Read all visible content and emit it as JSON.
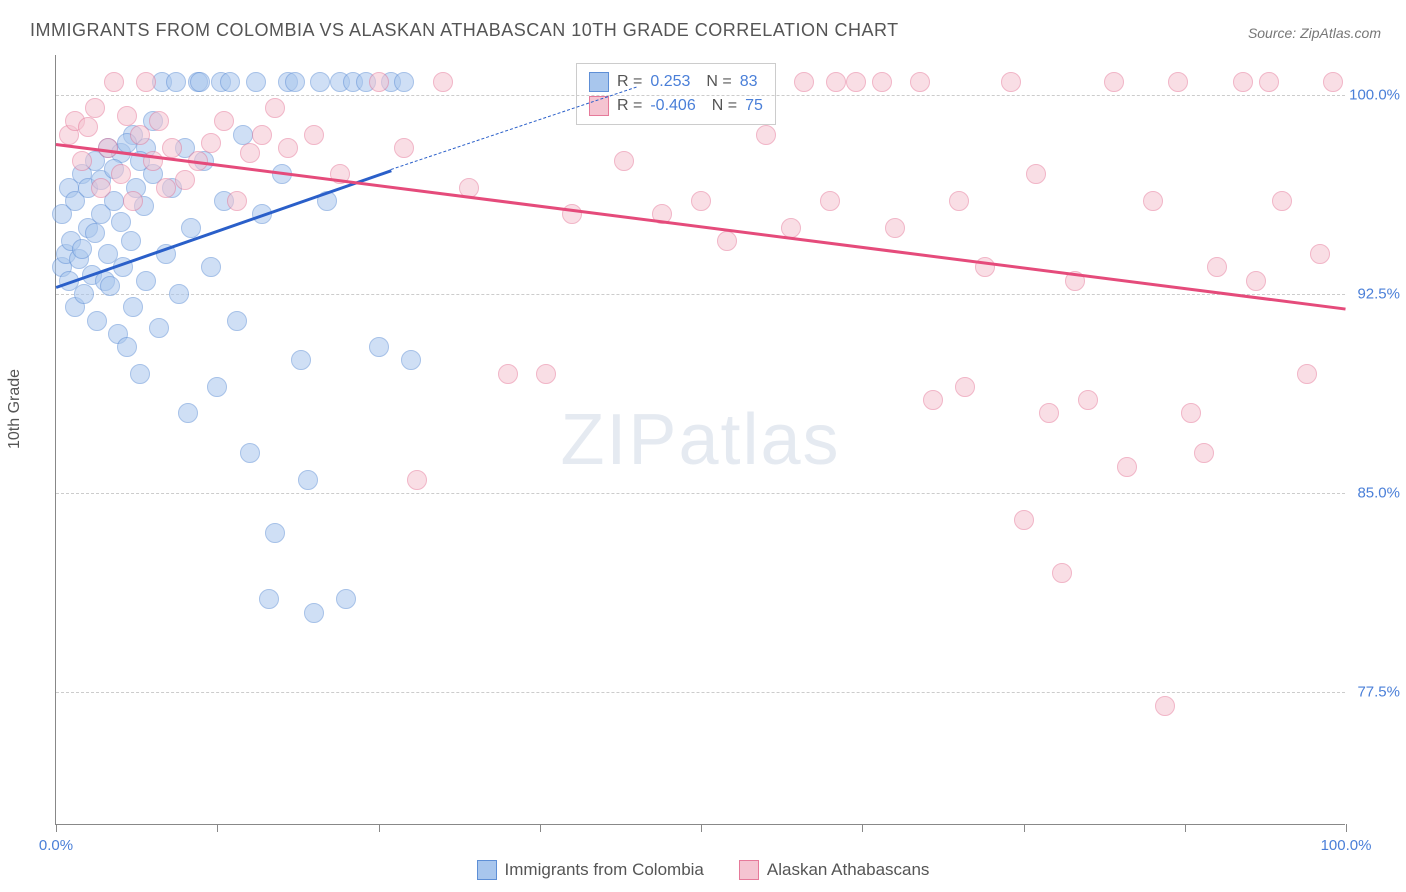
{
  "title": "IMMIGRANTS FROM COLOMBIA VS ALASKAN ATHABASCAN 10TH GRADE CORRELATION CHART",
  "source": "Source: ZipAtlas.com",
  "y_axis_label": "10th Grade",
  "watermark": {
    "part1": "ZIP",
    "part2": "atlas"
  },
  "chart": {
    "type": "scatter",
    "xlim": [
      0,
      100
    ],
    "ylim": [
      72.5,
      101.5
    ],
    "y_ticks": [
      {
        "value": 100.0,
        "label": "100.0%"
      },
      {
        "value": 92.5,
        "label": "92.5%"
      },
      {
        "value": 85.0,
        "label": "85.0%"
      },
      {
        "value": 77.5,
        "label": "77.5%"
      }
    ],
    "x_ticks": [
      0,
      12.5,
      25,
      37.5,
      50,
      62.5,
      75,
      87.5,
      100
    ],
    "x_tick_labels": [
      {
        "value": 0,
        "label": "0.0%"
      },
      {
        "value": 100,
        "label": "100.0%"
      }
    ],
    "background_color": "#ffffff",
    "grid_color": "#cccccc",
    "point_radius": 10,
    "point_opacity": 0.55,
    "series": [
      {
        "name": "Immigrants from Colombia",
        "color_fill": "#a8c6ed",
        "color_stroke": "#5e8fd6",
        "trend_color": "#2a5fc9",
        "R": "0.253",
        "N": "83",
        "trend": {
          "x1": 0,
          "y1": 92.8,
          "x2": 26,
          "y2": 97.2,
          "x2_dashed": 45,
          "y2_dashed": 100.3
        },
        "points": [
          [
            0.5,
            93.5
          ],
          [
            0.8,
            94.0
          ],
          [
            1.0,
            93.0
          ],
          [
            1.2,
            94.5
          ],
          [
            1.5,
            92.0
          ],
          [
            1.8,
            93.8
          ],
          [
            2.0,
            94.2
          ],
          [
            2.2,
            92.5
          ],
          [
            2.5,
            95.0
          ],
          [
            2.8,
            93.2
          ],
          [
            3.0,
            94.8
          ],
          [
            3.2,
            91.5
          ],
          [
            3.5,
            95.5
          ],
          [
            3.8,
            93.0
          ],
          [
            4.0,
            94.0
          ],
          [
            4.2,
            92.8
          ],
          [
            4.5,
            96.0
          ],
          [
            4.8,
            91.0
          ],
          [
            5.0,
            95.2
          ],
          [
            5.2,
            93.5
          ],
          [
            5.5,
            90.5
          ],
          [
            5.8,
            94.5
          ],
          [
            6.0,
            92.0
          ],
          [
            6.2,
            96.5
          ],
          [
            6.5,
            89.5
          ],
          [
            6.8,
            95.8
          ],
          [
            7.0,
            93.0
          ],
          [
            7.5,
            97.0
          ],
          [
            8.0,
            91.2
          ],
          [
            8.2,
            100.5
          ],
          [
            8.5,
            94.0
          ],
          [
            9.0,
            96.5
          ],
          [
            9.3,
            100.5
          ],
          [
            9.5,
            92.5
          ],
          [
            10.0,
            98.0
          ],
          [
            10.2,
            88.0
          ],
          [
            10.5,
            95.0
          ],
          [
            11.0,
            100.5
          ],
          [
            11.2,
            100.5
          ],
          [
            11.5,
            97.5
          ],
          [
            12.0,
            93.5
          ],
          [
            12.5,
            89.0
          ],
          [
            12.8,
            100.5
          ],
          [
            13.0,
            96.0
          ],
          [
            13.5,
            100.5
          ],
          [
            14.0,
            91.5
          ],
          [
            14.5,
            98.5
          ],
          [
            15.0,
            86.5
          ],
          [
            15.5,
            100.5
          ],
          [
            16.0,
            95.5
          ],
          [
            16.5,
            81.0
          ],
          [
            17.0,
            83.5
          ],
          [
            17.5,
            97.0
          ],
          [
            18.0,
            100.5
          ],
          [
            18.5,
            100.5
          ],
          [
            19.0,
            90.0
          ],
          [
            19.5,
            85.5
          ],
          [
            20.0,
            80.5
          ],
          [
            20.5,
            100.5
          ],
          [
            21.0,
            96.0
          ],
          [
            22.0,
            100.5
          ],
          [
            22.5,
            81.0
          ],
          [
            23.0,
            100.5
          ],
          [
            24.0,
            100.5
          ],
          [
            25.0,
            90.5
          ],
          [
            26.0,
            100.5
          ],
          [
            27.0,
            100.5
          ],
          [
            27.5,
            90.0
          ],
          [
            1.0,
            96.5
          ],
          [
            2.0,
            97.0
          ],
          [
            3.0,
            97.5
          ],
          [
            4.0,
            98.0
          ],
          [
            5.0,
            97.8
          ],
          [
            6.0,
            98.5
          ],
          [
            7.0,
            98.0
          ],
          [
            0.5,
            95.5
          ],
          [
            1.5,
            96.0
          ],
          [
            2.5,
            96.5
          ],
          [
            3.5,
            96.8
          ],
          [
            4.5,
            97.2
          ],
          [
            5.5,
            98.2
          ],
          [
            6.5,
            97.5
          ],
          [
            7.5,
            99.0
          ]
        ]
      },
      {
        "name": "Alaskan Athabascans",
        "color_fill": "#f5c4d1",
        "color_stroke": "#e67a9a",
        "trend_color": "#e54b7b",
        "R": "-0.406",
        "N": "75",
        "trend": {
          "x1": 0,
          "y1": 98.2,
          "x2": 100,
          "y2": 92.0
        },
        "points": [
          [
            1.0,
            98.5
          ],
          [
            1.5,
            99.0
          ],
          [
            2.0,
            97.5
          ],
          [
            2.5,
            98.8
          ],
          [
            3.0,
            99.5
          ],
          [
            3.5,
            96.5
          ],
          [
            4.0,
            98.0
          ],
          [
            4.5,
            100.5
          ],
          [
            5.0,
            97.0
          ],
          [
            5.5,
            99.2
          ],
          [
            6.0,
            96.0
          ],
          [
            6.5,
            98.5
          ],
          [
            7.0,
            100.5
          ],
          [
            7.5,
            97.5
          ],
          [
            8.0,
            99.0
          ],
          [
            8.5,
            96.5
          ],
          [
            9.0,
            98.0
          ],
          [
            10.0,
            96.8
          ],
          [
            11.0,
            97.5
          ],
          [
            12.0,
            98.2
          ],
          [
            13.0,
            99.0
          ],
          [
            14.0,
            96.0
          ],
          [
            15.0,
            97.8
          ],
          [
            16.0,
            98.5
          ],
          [
            17.0,
            99.5
          ],
          [
            18.0,
            98.0
          ],
          [
            20.0,
            98.5
          ],
          [
            22.0,
            97.0
          ],
          [
            25.0,
            100.5
          ],
          [
            27.0,
            98.0
          ],
          [
            28.0,
            85.5
          ],
          [
            30.0,
            100.5
          ],
          [
            32.0,
            96.5
          ],
          [
            35.0,
            89.5
          ],
          [
            38.0,
            89.5
          ],
          [
            40.0,
            95.5
          ],
          [
            44.0,
            97.5
          ],
          [
            47.0,
            95.5
          ],
          [
            50.0,
            96.0
          ],
          [
            52.0,
            94.5
          ],
          [
            55.0,
            98.5
          ],
          [
            57.0,
            95.0
          ],
          [
            58.0,
            100.5
          ],
          [
            60.0,
            96.0
          ],
          [
            62.0,
            100.5
          ],
          [
            64.0,
            100.5
          ],
          [
            65.0,
            95.0
          ],
          [
            67.0,
            100.5
          ],
          [
            68.0,
            88.5
          ],
          [
            70.0,
            96.0
          ],
          [
            70.5,
            89.0
          ],
          [
            72.0,
            93.5
          ],
          [
            74.0,
            100.5
          ],
          [
            75.0,
            84.0
          ],
          [
            76.0,
            97.0
          ],
          [
            77.0,
            88.0
          ],
          [
            78.0,
            82.0
          ],
          [
            79.0,
            93.0
          ],
          [
            80.0,
            88.5
          ],
          [
            82.0,
            100.5
          ],
          [
            83.0,
            86.0
          ],
          [
            85.0,
            96.0
          ],
          [
            86.0,
            77.0
          ],
          [
            87.0,
            100.5
          ],
          [
            88.0,
            88.0
          ],
          [
            89.0,
            86.5
          ],
          [
            90.0,
            93.5
          ],
          [
            92.0,
            100.5
          ],
          [
            93.0,
            93.0
          ],
          [
            95.0,
            96.0
          ],
          [
            97.0,
            89.5
          ],
          [
            98.0,
            94.0
          ],
          [
            99.0,
            100.5
          ],
          [
            94.0,
            100.5
          ],
          [
            60.5,
            100.5
          ]
        ]
      }
    ]
  },
  "bottom_legend": [
    {
      "label": "Immigrants from Colombia",
      "fill": "#a8c6ed",
      "stroke": "#5e8fd6"
    },
    {
      "label": "Alaskan Athabascans",
      "fill": "#f5c4d1",
      "stroke": "#e67a9a"
    }
  ]
}
